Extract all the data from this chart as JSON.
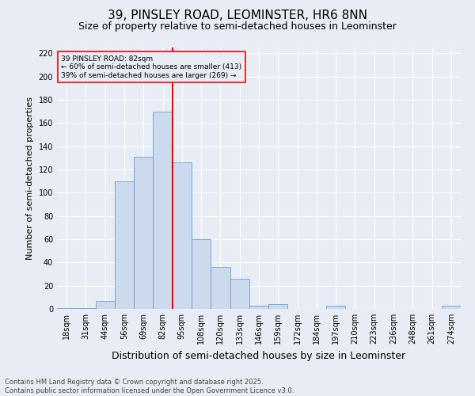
{
  "title1": "39, PINSLEY ROAD, LEOMINSTER, HR6 8NN",
  "title2": "Size of property relative to semi-detached houses in Leominster",
  "xlabel": "Distribution of semi-detached houses by size in Leominster",
  "ylabel": "Number of semi-detached properties",
  "categories": [
    "18sqm",
    "31sqm",
    "44sqm",
    "56sqm",
    "69sqm",
    "82sqm",
    "95sqm",
    "108sqm",
    "120sqm",
    "133sqm",
    "146sqm",
    "159sqm",
    "172sqm",
    "184sqm",
    "197sqm",
    "210sqm",
    "223sqm",
    "236sqm",
    "248sqm",
    "261sqm",
    "274sqm"
  ],
  "values": [
    1,
    1,
    7,
    110,
    131,
    170,
    126,
    60,
    36,
    26,
    3,
    4,
    0,
    0,
    3,
    0,
    0,
    0,
    0,
    0,
    3
  ],
  "bar_color": "#ccdaee",
  "bar_edge_color": "#6b9fd4",
  "background_color": "#e8edf5",
  "vline_index": 5,
  "vline_color": "red",
  "ylim": [
    0,
    225
  ],
  "yticks": [
    0,
    20,
    40,
    60,
    80,
    100,
    120,
    140,
    160,
    180,
    200,
    220
  ],
  "annotation_title": "39 PINSLEY ROAD: 82sqm",
  "annotation_line1": "← 60% of semi-detached houses are smaller (413)",
  "annotation_line2": "39% of semi-detached houses are larger (269) →",
  "annotation_box_edgecolor": "red",
  "footer1": "Contains HM Land Registry data © Crown copyright and database right 2025.",
  "footer2": "Contains public sector information licensed under the Open Government Licence v3.0.",
  "title1_fontsize": 11,
  "title2_fontsize": 9,
  "xlabel_fontsize": 9,
  "ylabel_fontsize": 8,
  "tick_fontsize": 7,
  "annot_fontsize": 6.5,
  "footer_fontsize": 6
}
